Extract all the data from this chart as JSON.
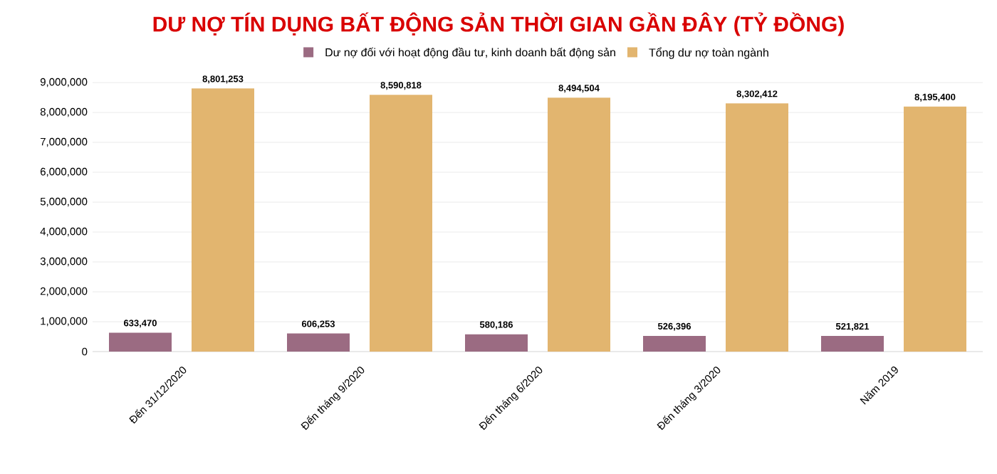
{
  "chart_data": {
    "type": "bar",
    "title": "DƯ NỢ TÍN DỤNG BẤT ĐỘNG SẢN THỜI GIAN GẦN ĐÂY (TỶ ĐỒNG)",
    "categories": [
      "Đến 31/12/2020",
      "Đến tháng 9/2020",
      "Đến tháng 6/2020",
      "Đến tháng 3/2020",
      "Năm 2019"
    ],
    "series": [
      {
        "name": "Dư nợ đối với hoạt động đầu tư, kinh doanh bất động sản",
        "color": "#9b6b82",
        "values": [
          633470,
          606253,
          580186,
          526396,
          521821
        ],
        "value_labels": [
          "633,470",
          "606,253",
          "580,186",
          "526,396",
          "521,821"
        ]
      },
      {
        "name": "Tổng dư nợ toàn ngành",
        "color": "#e2b56f",
        "values": [
          8801253,
          8590818,
          8494504,
          8302412,
          8195400
        ],
        "value_labels": [
          "8,801,253",
          "8,590,818",
          "8,494,504",
          "8,302,412",
          "8,195,400"
        ]
      }
    ],
    "ylim": [
      0,
      9000000
    ],
    "yticks": [
      0,
      {
        "value": 1000000,
        "label": "1,000,000"
      },
      {
        "value": 2000000,
        "label": "2,000,000"
      },
      {
        "value": 3000000,
        "label": "3,000,000"
      },
      {
        "value": 4000000,
        "label": "4,000,000"
      },
      {
        "value": 5000000,
        "label": "5,000,000"
      },
      {
        "value": 6000000,
        "label": "6,000,000"
      },
      {
        "value": 7000000,
        "label": "7,000,000"
      },
      {
        "value": 8000000,
        "label": "8,000,000"
      },
      {
        "value": 9000000,
        "label": "9,000,000"
      }
    ],
    "grid": "y",
    "legend": "top"
  }
}
